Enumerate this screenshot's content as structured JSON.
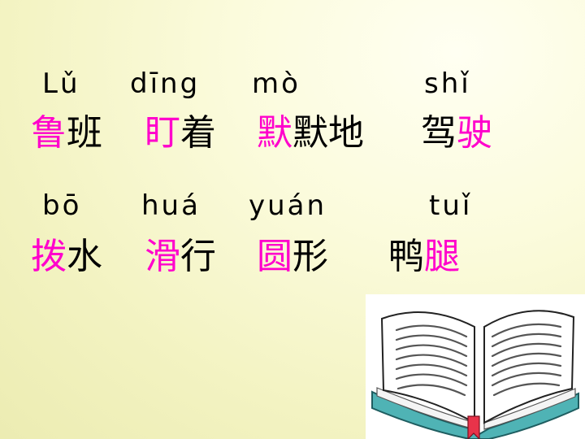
{
  "row1": {
    "pinyin": [
      "Lǔ",
      "dīng",
      "mò",
      "shǐ"
    ],
    "words": [
      {
        "hl": "鲁",
        "rest": "班"
      },
      {
        "hl": "盯",
        "rest": "着"
      },
      {
        "hl": "默",
        "rest": "默地"
      },
      {
        "pre": "驾",
        "hl": "驶"
      }
    ]
  },
  "row2": {
    "pinyin": [
      "bō",
      "huá",
      "yuán",
      "tuǐ"
    ],
    "words": [
      {
        "hl": "拨",
        "rest": "水"
      },
      {
        "hl": "滑",
        "rest": "行"
      },
      {
        "hl": "圆",
        "rest": "形"
      },
      {
        "pre": "鸭",
        "hl": "腿"
      }
    ]
  },
  "colors": {
    "highlight": "#ff00cc",
    "text": "#000000",
    "book_cover": "#4fb3b5",
    "bookmark": "#e8334a"
  },
  "illustration": "open-book-icon"
}
